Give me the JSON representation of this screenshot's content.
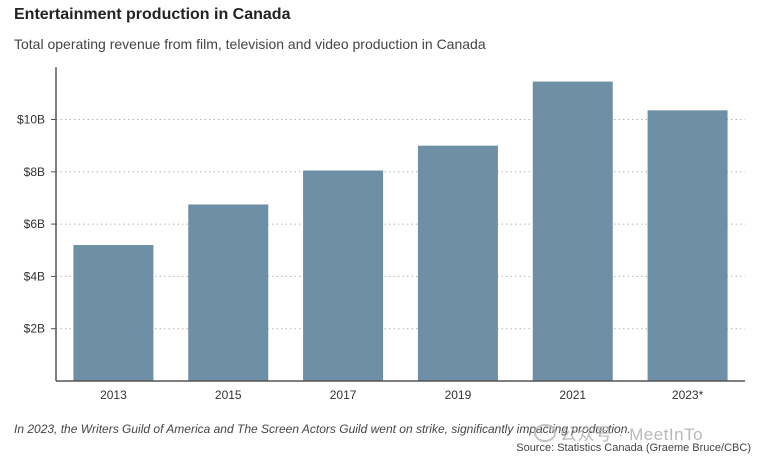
{
  "title": "Entertainment production in Canada",
  "subtitle": "Total operating revenue from film, television and video production in Canada",
  "note": "In 2023, the Writers Guild of America and The Screen Actors Guild went on strike, significantly impacting production.",
  "source": "Source: Statistics Canada (Graeme Bruce/CBC)",
  "watermark": {
    "text": "公众号 · MeetInTo",
    "icon": "wechat-icon"
  },
  "colors": {
    "bar": "#6f8fa6",
    "grid": "#b5b5b5",
    "axis": "#555555",
    "text": "#333333"
  },
  "chart_data": {
    "type": "bar",
    "categories": [
      "2013",
      "2015",
      "2017",
      "2019",
      "2021",
      "2023*"
    ],
    "values": [
      5.2,
      6.75,
      8.05,
      9.0,
      11.45,
      10.35
    ],
    "unit": "billion CAD",
    "ylim": [
      0,
      12
    ],
    "yticks": [
      {
        "value": 2,
        "label": "$2B"
      },
      {
        "value": 4,
        "label": "$4B"
      },
      {
        "value": 6,
        "label": "$6B"
      },
      {
        "value": 8,
        "label": "$8B"
      },
      {
        "value": 10,
        "label": "$10B"
      }
    ],
    "grid": "dotted-horizontal",
    "legend": "none"
  }
}
